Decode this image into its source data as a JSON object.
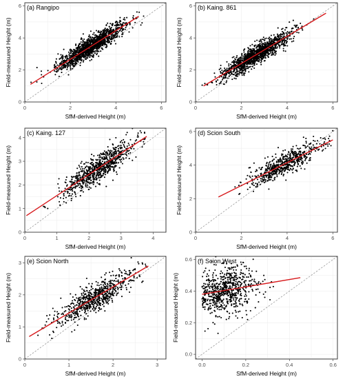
{
  "colors": {
    "points": "#000000",
    "fit_line": "#d7191c",
    "reference_line": "#8c8c8c"
  },
  "chart_data": [
    {
      "type": "scatter",
      "title": "(a) Rangipo",
      "xlabel": "SfM-derived Height (m)",
      "ylabel": "Field-measured Height (m)",
      "xlim": [
        0,
        6.2
      ],
      "ylim": [
        0,
        6.2
      ],
      "xticks": [
        0,
        2,
        4,
        6
      ],
      "yticks": [
        0,
        2,
        4,
        6
      ],
      "grid": true,
      "point_cloud": {
        "n": 1400,
        "x_mean": 2.9,
        "x_sd": 0.75,
        "x_min": 0.25,
        "x_max": 5.3,
        "noise_sd": 0.3
      },
      "reference_line": {
        "slope": 1,
        "intercept": 0
      },
      "fit_line": {
        "x": [
          0.25,
          5.0
        ],
        "y": [
          1.1,
          5.35
        ]
      }
    },
    {
      "type": "scatter",
      "title": "(b) Kaing. 861",
      "xlabel": "SfM-derived Height (m)",
      "ylabel": "Field-measured Height (m)",
      "xlim": [
        0,
        6.2
      ],
      "ylim": [
        0,
        6.2
      ],
      "xticks": [
        0,
        2,
        4,
        6
      ],
      "yticks": [
        0,
        2,
        4,
        6
      ],
      "grid": true,
      "point_cloud": {
        "n": 1300,
        "x_mean": 2.6,
        "x_sd": 0.75,
        "x_min": 0.25,
        "x_max": 5.8,
        "noise_sd": 0.3
      },
      "reference_line": {
        "slope": 1,
        "intercept": 0
      },
      "fit_line": {
        "x": [
          0.35,
          5.7
        ],
        "y": [
          1.0,
          5.55
        ]
      }
    },
    {
      "type": "scatter",
      "title": "(c) Kaing. 127",
      "xlabel": "SfM-derived Height (m)",
      "ylabel": "Field-measured Height (m)",
      "xlim": [
        0,
        4.4
      ],
      "ylim": [
        0,
        4.4
      ],
      "xticks": [
        0,
        1,
        2,
        3,
        4
      ],
      "yticks": [
        0,
        1,
        2,
        3,
        4
      ],
      "grid": true,
      "point_cloud": {
        "n": 800,
        "x_mean": 2.3,
        "x_sd": 0.55,
        "x_min": 0.05,
        "x_max": 3.8,
        "noise_sd": 0.3
      },
      "reference_line": {
        "slope": 1,
        "intercept": 0
      },
      "fit_line": {
        "x": [
          0.05,
          3.8
        ],
        "y": [
          0.7,
          4.05
        ]
      }
    },
    {
      "type": "scatter",
      "title": "(d) Scion South",
      "xlabel": "SfM-derived Height (m)",
      "ylabel": "Field-measured Height (m)",
      "xlim": [
        0,
        6.2
      ],
      "ylim": [
        0,
        6.2
      ],
      "xticks": [
        0,
        2,
        4,
        6
      ],
      "yticks": [
        0,
        2,
        4,
        6
      ],
      "grid": true,
      "point_cloud": {
        "n": 600,
        "x_mean": 3.9,
        "x_sd": 0.8,
        "x_min": 1.0,
        "x_max": 6.0,
        "noise_sd": 0.35
      },
      "reference_line": {
        "slope": 1,
        "intercept": 0
      },
      "fit_line": {
        "x": [
          1.0,
          6.0
        ],
        "y": [
          2.1,
          5.5
        ]
      }
    },
    {
      "type": "scatter",
      "title": "(e) Scion North",
      "xlabel": "SfM-derived Height (m)",
      "ylabel": "Field-measured Height (m)",
      "xlim": [
        0,
        3.2
      ],
      "ylim": [
        0,
        3.2
      ],
      "xticks": [
        0,
        1,
        2,
        3
      ],
      "yticks": [
        0,
        1,
        2,
        3
      ],
      "grid": true,
      "point_cloud": {
        "n": 700,
        "x_mean": 1.55,
        "x_sd": 0.45,
        "x_min": 0.1,
        "x_max": 2.8,
        "noise_sd": 0.22
      },
      "reference_line": {
        "slope": 1,
        "intercept": 0
      },
      "fit_line": {
        "x": [
          0.1,
          2.8
        ],
        "y": [
          0.7,
          2.9
        ]
      }
    },
    {
      "type": "scatter",
      "title": "(f) Scion West",
      "xlabel": "SfM-derived Height (m)",
      "ylabel": "Field-measured Height (m)",
      "xlim": [
        -0.03,
        0.62
      ],
      "ylim": [
        -0.03,
        0.62
      ],
      "xticks": [
        0.0,
        0.2,
        0.4,
        0.6
      ],
      "yticks": [
        0.0,
        0.2,
        0.4,
        0.6
      ],
      "tick_format": "1dp",
      "grid": true,
      "point_cloud": {
        "n": 700,
        "x_mean": 0.11,
        "x_sd": 0.07,
        "x_min": 0.0,
        "x_max": 0.45,
        "noise_sd": 0.075
      },
      "reference_line": {
        "slope": 1,
        "intercept": 0
      },
      "fit_line": {
        "x": [
          0.0,
          0.45
        ],
        "y": [
          0.38,
          0.485
        ]
      }
    }
  ]
}
